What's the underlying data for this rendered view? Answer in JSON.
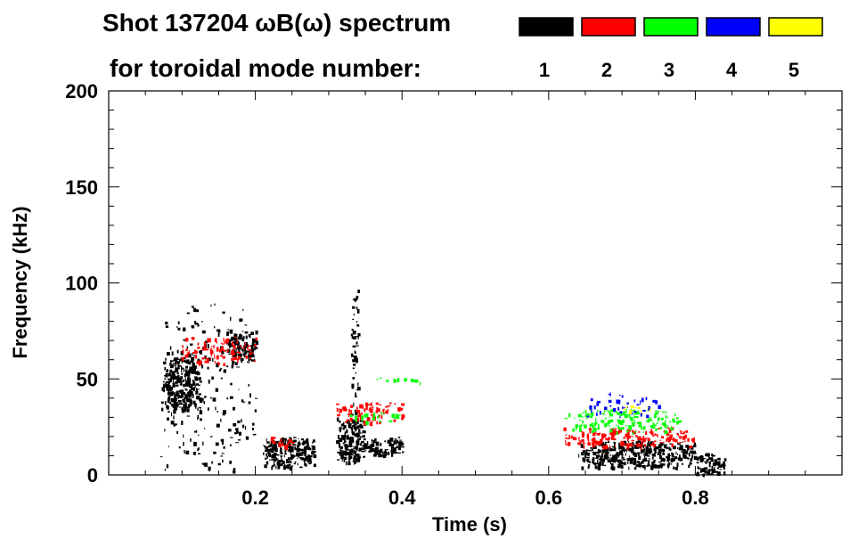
{
  "chart_data": {
    "type": "heatmap",
    "title_line1": "Shot 137204 ωB(ω) spectrum",
    "title_line2": "for toroidal mode number:",
    "xlabel": "Time (s)",
    "ylabel": "Frequency (kHz)",
    "xlim": [
      0.0,
      1.0
    ],
    "ylim": [
      0,
      200
    ],
    "xticks": [
      {
        "v": 0.2,
        "label": "0.2"
      },
      {
        "v": 0.4,
        "label": "0.4"
      },
      {
        "v": 0.6,
        "label": "0.6"
      },
      {
        "v": 0.8,
        "label": "0.8"
      }
    ],
    "yticks": [
      {
        "v": 0,
        "label": "0"
      },
      {
        "v": 50,
        "label": "50"
      },
      {
        "v": 100,
        "label": "100"
      },
      {
        "v": 150,
        "label": "150"
      },
      {
        "v": 200,
        "label": "200"
      }
    ],
    "legend": [
      {
        "mode": "1",
        "color": "#000000"
      },
      {
        "mode": "2",
        "color": "#ff0000"
      },
      {
        "mode": "3",
        "color": "#00ff00"
      },
      {
        "mode": "4",
        "color": "#0000ff"
      },
      {
        "mode": "5",
        "color": "#ffff00"
      }
    ],
    "regions": [
      {
        "mode": 1,
        "t": [
          0.074,
          0.125
        ],
        "f": [
          34,
          62
        ],
        "density": 0.8
      },
      {
        "mode": 1,
        "t": [
          0.07,
          0.2
        ],
        "f": [
          2,
          90
        ],
        "density": 0.08
      },
      {
        "mode": 1,
        "t": [
          0.16,
          0.2
        ],
        "f": [
          60,
          75
        ],
        "density": 0.6
      },
      {
        "mode": 1,
        "t": [
          0.21,
          0.28
        ],
        "f": [
          4,
          20
        ],
        "density": 0.8
      },
      {
        "mode": 1,
        "t": [
          0.31,
          0.35
        ],
        "f": [
          6,
          30
        ],
        "density": 0.8
      },
      {
        "mode": 1,
        "t": [
          0.33,
          0.34
        ],
        "f": [
          30,
          100
        ],
        "density": 0.25
      },
      {
        "mode": 1,
        "t": [
          0.35,
          0.4
        ],
        "f": [
          10,
          20
        ],
        "density": 0.7
      },
      {
        "mode": 1,
        "t": [
          0.64,
          0.8
        ],
        "f": [
          4,
          18
        ],
        "density": 0.75
      },
      {
        "mode": 1,
        "t": [
          0.8,
          0.84
        ],
        "f": [
          0,
          12
        ],
        "density": 0.6
      },
      {
        "mode": 2,
        "t": [
          0.095,
          0.2
        ],
        "f": [
          58,
          72
        ],
        "density": 0.25
      },
      {
        "mode": 2,
        "t": [
          0.22,
          0.25
        ],
        "f": [
          15,
          20
        ],
        "density": 0.4
      },
      {
        "mode": 2,
        "t": [
          0.31,
          0.4
        ],
        "f": [
          27,
          38
        ],
        "density": 0.35
      },
      {
        "mode": 2,
        "t": [
          0.62,
          0.8
        ],
        "f": [
          15,
          25
        ],
        "density": 0.4
      },
      {
        "mode": 3,
        "t": [
          0.62,
          0.78
        ],
        "f": [
          22,
          35
        ],
        "density": 0.3
      },
      {
        "mode": 3,
        "t": [
          0.36,
          0.43
        ],
        "f": [
          48,
          52
        ],
        "density": 0.15
      },
      {
        "mode": 3,
        "t": [
          0.32,
          0.4
        ],
        "f": [
          28,
          33
        ],
        "density": 0.2
      },
      {
        "mode": 4,
        "t": [
          0.65,
          0.75
        ],
        "f": [
          30,
          43
        ],
        "density": 0.12
      },
      {
        "mode": 5,
        "t": [
          0.7,
          0.74
        ],
        "f": [
          33,
          37
        ],
        "density": 0.15
      }
    ]
  }
}
